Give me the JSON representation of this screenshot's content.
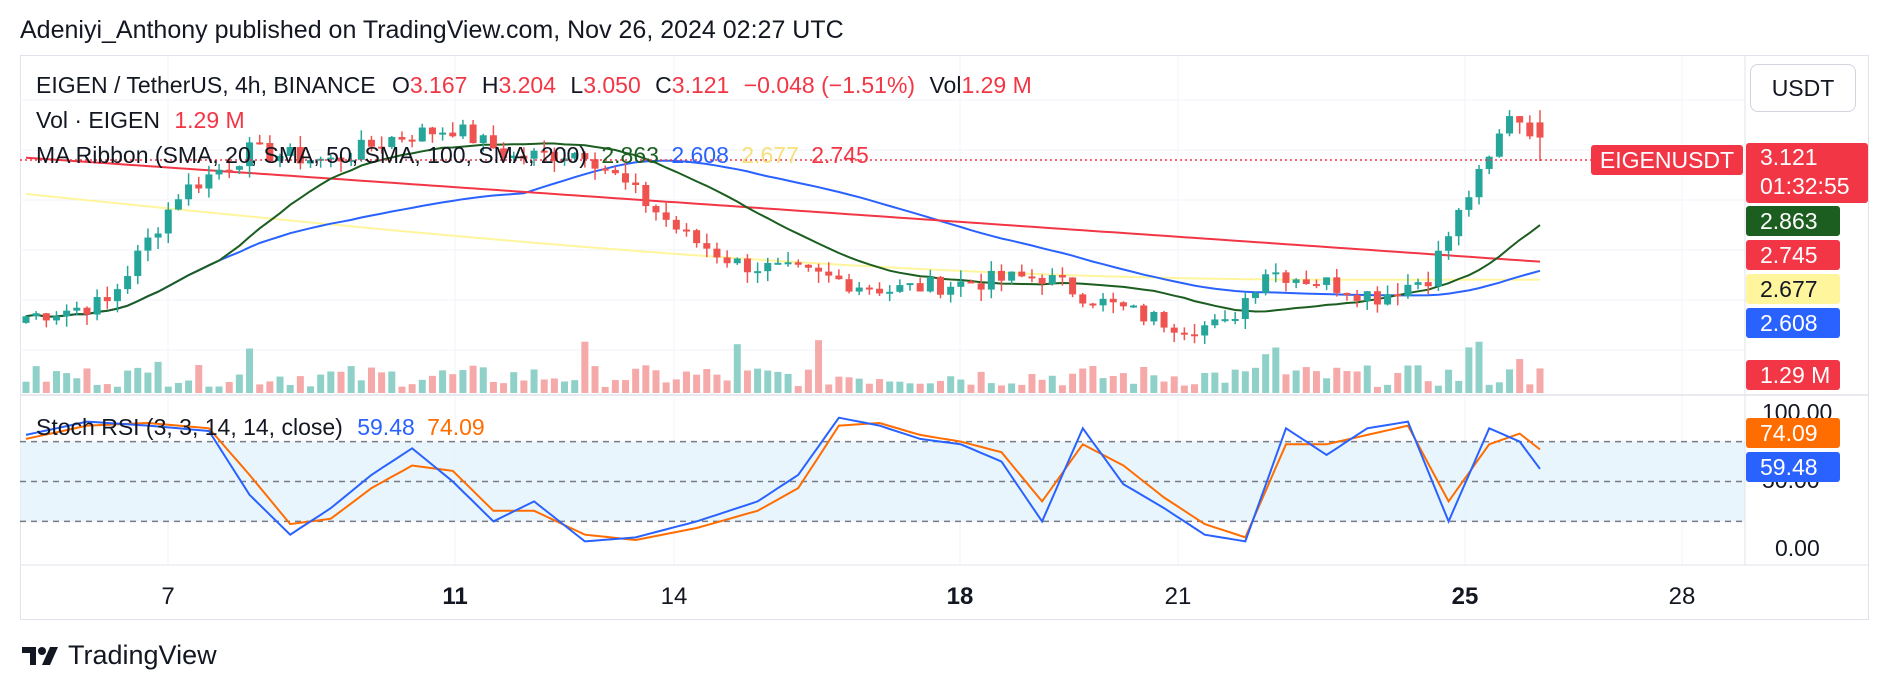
{
  "header": {
    "published": "Adeniyi_Anthony published on TradingView.com, Nov 26, 2024 02:27 UTC"
  },
  "currency_button": "USDT",
  "legend": {
    "symbol": "EIGEN / TetherUS, 4h, BINANCE",
    "o_label": "O",
    "o_value": "3.167",
    "h_label": "H",
    "h_value": "3.204",
    "l_label": "L",
    "l_value": "3.050",
    "c_label": "C",
    "c_value": "3.121",
    "change": "−0.048 (−1.51%)",
    "vol_label": "Vol",
    "vol_value": "1.29 M",
    "vol_line_label": "Vol · EIGEN",
    "vol_line_value": "1.29 M",
    "ma_label": "MA Ribbon (SMA, 20, SMA, 50, SMA, 100, SMA, 200)",
    "ma_vals": [
      "2.863",
      "2.608",
      "2.677",
      "2.745"
    ],
    "stoch_label": "Stoch RSI (3, 3, 14, 14, close)",
    "stoch_k": "59.48",
    "stoch_d": "74.09"
  },
  "price_tags": {
    "symbol_tag": "EIGENUSDT",
    "last": "3.121",
    "countdown": "01:32:55",
    "ma20": "2.863",
    "ma200": "2.745",
    "ma100": "2.677",
    "ma50": "2.608",
    "vol": "1.29 M"
  },
  "stoch_axis": [
    "100.00",
    "50.00",
    "0.00"
  ],
  "stoch_tags": {
    "d": "74.09",
    "k": "59.48"
  },
  "x_axis_labels": [
    {
      "label": "7",
      "bold": false
    },
    {
      "label": "11",
      "bold": true
    },
    {
      "label": "14",
      "bold": false
    },
    {
      "label": "18",
      "bold": true
    },
    {
      "label": "21",
      "bold": false
    },
    {
      "label": "25",
      "bold": true
    },
    {
      "label": "28",
      "bold": false
    }
  ],
  "colors": {
    "up": "#26a69a",
    "down": "#ef5350",
    "ma20": "#1b5e20",
    "ma50": "#2962ff",
    "ma100": "#fff59d",
    "ma200": "#f23645",
    "k": "#2962ff",
    "d": "#ff6d00"
  },
  "footer": {
    "brand": "TradingView"
  },
  "chart_data": {
    "type": "candlestick",
    "title": "EIGEN / TetherUS, 4h, BINANCE",
    "interval": "4h",
    "price_range": [
      2.35,
      3.35
    ],
    "last_price": 3.121,
    "ohlc_last": {
      "open": 3.167,
      "high": 3.204,
      "low": 3.05,
      "close": 3.121
    },
    "x_ticks": [
      "7",
      "11",
      "14",
      "18",
      "21",
      "25",
      "28"
    ],
    "moving_averages": [
      {
        "name": "SMA 20",
        "last": 2.863
      },
      {
        "name": "SMA 50",
        "last": 2.608
      },
      {
        "name": "SMA 100",
        "last": 2.677
      },
      {
        "name": "SMA 200",
        "last": 2.745
      }
    ],
    "volume_last": "1.29 M",
    "stoch_rsi": {
      "k_last": 59.48,
      "d_last": 74.09,
      "levels": [
        80,
        50,
        20
      ],
      "range": [
        0,
        100
      ]
    }
  }
}
